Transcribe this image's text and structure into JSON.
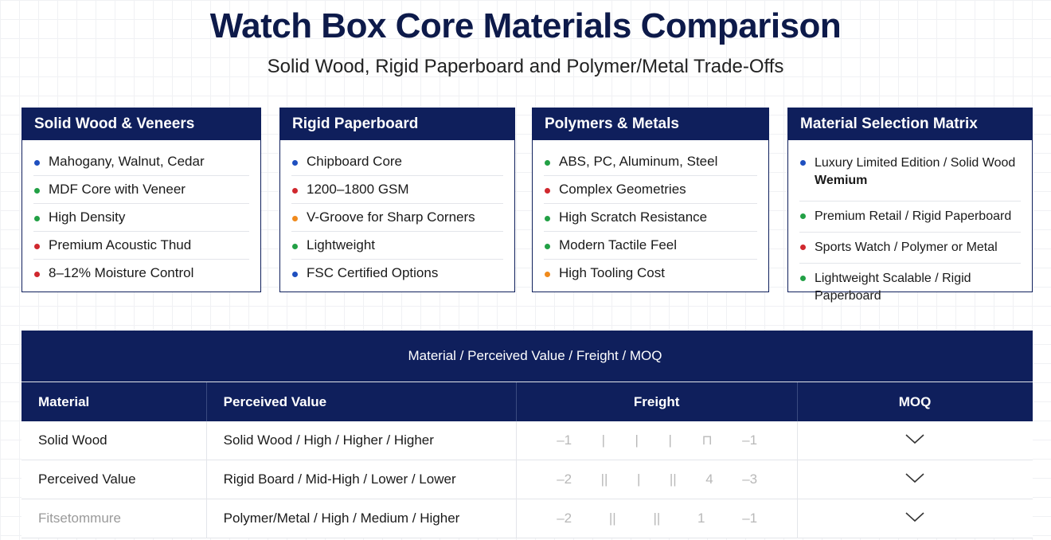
{
  "header": {
    "title": "Watch Box Core Materials Comparison",
    "subtitle": "Solid Wood, Rigid Paperboard and Polymer/Metal Trade-Offs"
  },
  "cards": [
    {
      "title": "Solid Wood & Veneers",
      "items": [
        {
          "text": "Mahogany, Walnut, Cedar",
          "color": "#1f4fbf"
        },
        {
          "text": "MDF Core with Veneer",
          "color": "#22a045"
        },
        {
          "text": "High Density",
          "color": "#22a045"
        },
        {
          "text": "Premium Acoustic Thud",
          "color": "#d0282e"
        },
        {
          "text": "8‒12% Moisture Control",
          "color": "#d0282e"
        }
      ]
    },
    {
      "title": "Rigid Paperboard",
      "items": [
        {
          "text": "Chipboard Core",
          "color": "#1f4fbf"
        },
        {
          "text": "1200‒1800 GSM",
          "color": "#d0282e"
        },
        {
          "text": "V-Groove for Sharp Corners",
          "color": "#f08a1c"
        },
        {
          "text": "Lightweight",
          "color": "#22a045"
        },
        {
          "text": "FSC Certified Options",
          "color": "#1f4fbf"
        }
      ]
    },
    {
      "title": "Polymers & Metals",
      "items": [
        {
          "text": "ABS, PC, Aluminum, Steel",
          "color": "#22a045"
        },
        {
          "text": "Complex Geometries",
          "color": "#d0282e"
        },
        {
          "text": "High Scratch Resistance",
          "color": "#22a045"
        },
        {
          "text": "Modern Tactile Feel",
          "color": "#22a045"
        },
        {
          "text": "High Tooling Cost",
          "color": "#f08a1c"
        }
      ]
    },
    {
      "title": "Material Selection Matrix",
      "items": [
        {
          "text": "Luxury Limited Edition / Solid Wood",
          "note": "Wemium",
          "color": "#1f4fbf"
        },
        {
          "text": "Premium Retail / Rigid Paperboard",
          "color": "#22a045"
        },
        {
          "text": "Sports Watch / Polymer or Metal",
          "color": "#d0282e"
        },
        {
          "text": "Lightweight Scalable / Rigid Paperboard",
          "color": "#22a045"
        }
      ]
    }
  ],
  "table": {
    "title": "Material / Perceived Value / Freight / MOQ",
    "columns": [
      "Material",
      "Perceived Value",
      "Freight",
      "MOQ"
    ],
    "rows": [
      {
        "material": "Solid Wood",
        "value": "Solid Wood / High / Higher / Higher",
        "freight": [
          "‒1",
          "|",
          "|",
          "|",
          "⊓",
          "‒1"
        ]
      },
      {
        "material": "Perceived Value",
        "value": "Rigid Board / Mid-High / Lower / Lower",
        "freight": [
          "‒2",
          "||",
          "|",
          "||",
          "4",
          "‒3"
        ]
      },
      {
        "material": "Fitsetommure",
        "value": "Polymer/Metal / High / Medium / Higher",
        "freight": [
          "‒2",
          "||",
          "||",
          "1",
          "‒1"
        ]
      }
    ]
  }
}
